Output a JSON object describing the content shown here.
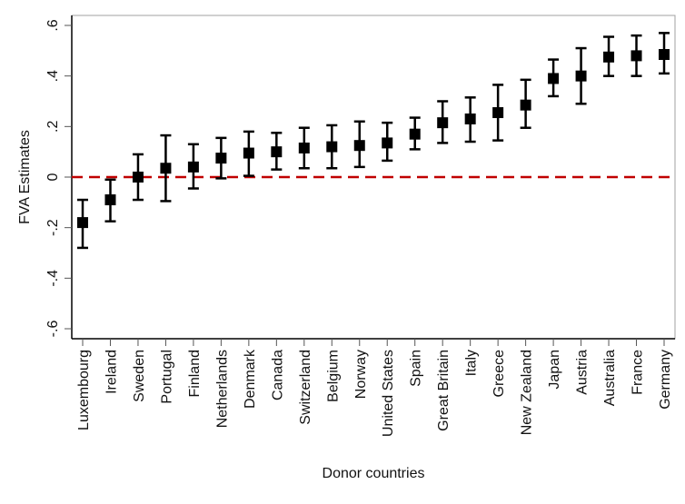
{
  "chart_data": {
    "type": "scatter",
    "subtype": "point-with-error-bars",
    "title": "",
    "xlabel": "Donor countries",
    "ylabel": "FVA Estimates",
    "ylim": [
      -0.64,
      0.64
    ],
    "yticks": [
      -0.6,
      -0.4,
      -0.2,
      0.0,
      0.2,
      0.4,
      0.6
    ],
    "ytick_labels": [
      "-.6",
      "-.4",
      "-.2",
      "0",
      ".2",
      ".4",
      ".6"
    ],
    "grid": false,
    "legend": "none",
    "reference_line": {
      "y": 0,
      "style": "dashed",
      "color": "#c00000"
    },
    "marker_color": "#000000",
    "categories": [
      "Luxembourg",
      "Ireland",
      "Sweden",
      "Portugal",
      "Finland",
      "Netherlands",
      "Denmark",
      "Canada",
      "Switzerland",
      "Belgium",
      "Norway",
      "United States",
      "Spain",
      "Great Britain",
      "Italy",
      "Greece",
      "New Zealand",
      "Japan",
      "Austria",
      "Australia",
      "France",
      "Germany"
    ],
    "series": [
      {
        "name": "FVA Estimates",
        "values": [
          -0.18,
          -0.09,
          0.0,
          0.035,
          0.04,
          0.075,
          0.095,
          0.1,
          0.115,
          0.12,
          0.125,
          0.135,
          0.17,
          0.215,
          0.23,
          0.255,
          0.285,
          0.39,
          0.4,
          0.475,
          0.48,
          0.485
        ],
        "ci_lower": [
          -0.28,
          -0.175,
          -0.09,
          -0.095,
          -0.045,
          -0.005,
          0.005,
          0.03,
          0.035,
          0.035,
          0.04,
          0.065,
          0.11,
          0.135,
          0.14,
          0.145,
          0.195,
          0.32,
          0.29,
          0.4,
          0.4,
          0.41
        ],
        "ci_upper": [
          -0.09,
          -0.01,
          0.09,
          0.165,
          0.13,
          0.155,
          0.18,
          0.175,
          0.195,
          0.205,
          0.22,
          0.215,
          0.235,
          0.3,
          0.315,
          0.365,
          0.385,
          0.465,
          0.51,
          0.555,
          0.56,
          0.57
        ]
      }
    ]
  }
}
